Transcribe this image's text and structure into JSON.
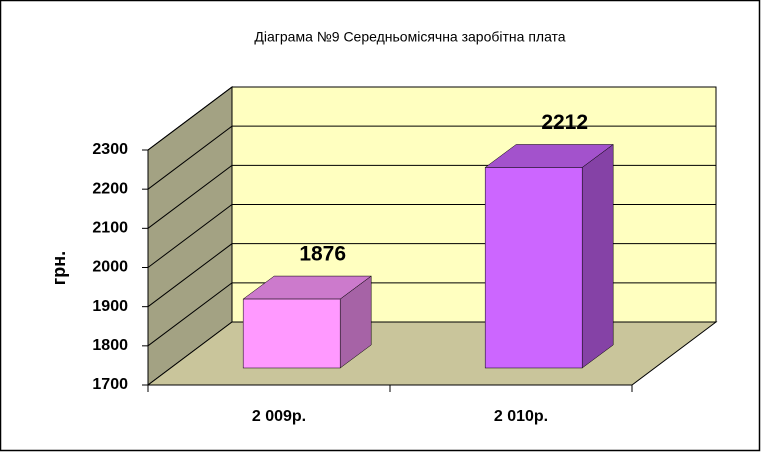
{
  "chart_data": {
    "type": "bar3d",
    "title": "Діаграма №9 Середньомісячна заробітна плата",
    "y_label": "грн.",
    "categories": [
      "2 009р.",
      "2 010р."
    ],
    "values": [
      1876,
      2212
    ],
    "colors": [
      "#ff99ff",
      "#cc66ff"
    ],
    "ylim": [
      1700,
      2300
    ],
    "yticks": [
      1700,
      1800,
      1900,
      2000,
      2100,
      2200,
      2300
    ],
    "grid": true
  }
}
